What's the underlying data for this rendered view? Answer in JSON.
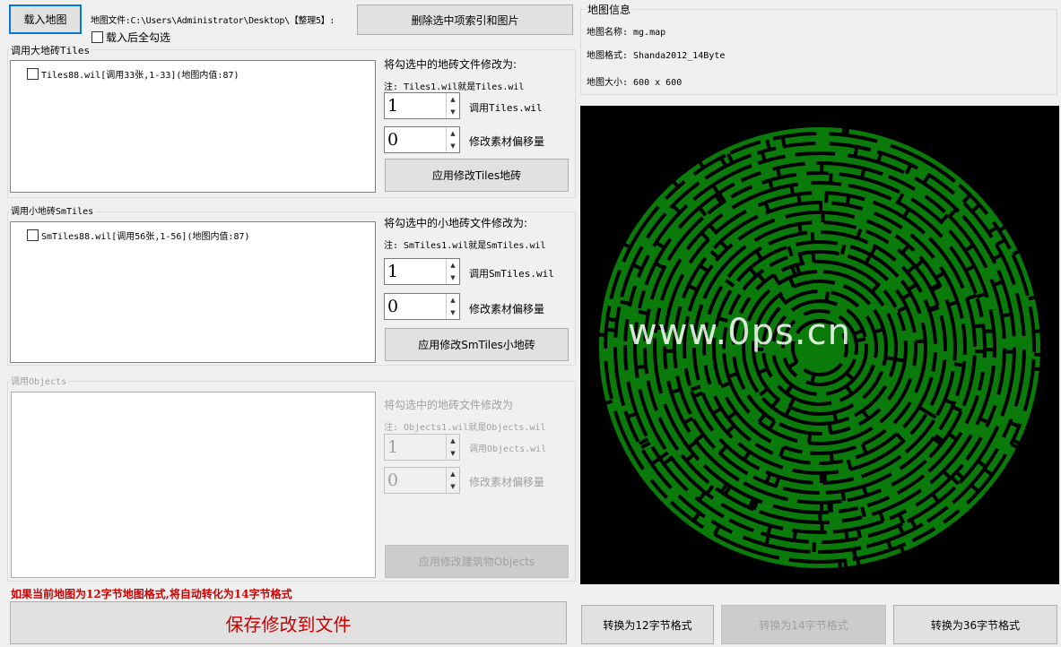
{
  "top": {
    "load_button": "载入地图",
    "map_file": "地图文件:C:\\Users\\Administrator\\Desktop\\【整理5】:",
    "delete_button": "删除选中项索引和图片",
    "select_all_label": "载入后全勾选",
    "select_all_checked": false
  },
  "tiles": {
    "title": "调用大地砖Tiles",
    "items": [
      "Tiles88.wil[调用33张,1-33](地图内值:87)"
    ],
    "change_label": "将勾选中的地砖文件修改为:",
    "note": "注: Tiles1.wil就是Tiles.wil",
    "spin1": "1",
    "spin1_label": "调用Tiles.wil",
    "spin2": "0",
    "spin2_label": "修改素材偏移量",
    "apply": "应用修改Tiles地砖"
  },
  "smtiles": {
    "title": "调用小地砖SmTiles",
    "items": [
      "SmTiles88.wil[调用56张,1-56](地图内值:87)"
    ],
    "change_label": "将勾选中的小地砖文件修改为:",
    "note": "注: SmTiles1.wil就是SmTiles.wil",
    "spin1": "1",
    "spin1_label": "调用SmTiles.wil",
    "spin2": "0",
    "spin2_label": "修改素材偏移量",
    "apply": "应用修改SmTiles小地砖"
  },
  "objects": {
    "title": "调用Objects",
    "change_label": "将勾选中的地砖文件修改为",
    "note": "注: Objects1.wil就是Objects.wil",
    "spin1": "1",
    "spin1_label": "调用Objects.wil",
    "spin2": "0",
    "spin2_label": "修改素材偏移量",
    "apply": "应用修改建筑物Objects"
  },
  "warning": "如果当前地图为12字节地图格式,将自动转化为14字节格式",
  "save_button": "保存修改到文件",
  "info": {
    "title": "地图信息",
    "name": "地图名称: mg.map",
    "format": "地图格式: Shanda2012_14Byte",
    "size": "地图大小: 600 x 600"
  },
  "convert": {
    "b12": "转换为12字节格式",
    "b14": "转换为14字节格式",
    "b36": "转换为36字节格式"
  },
  "watermark": "www.0ps.cn",
  "colors": {
    "maze": "#0a7a0a",
    "warning": "#cc0000"
  }
}
